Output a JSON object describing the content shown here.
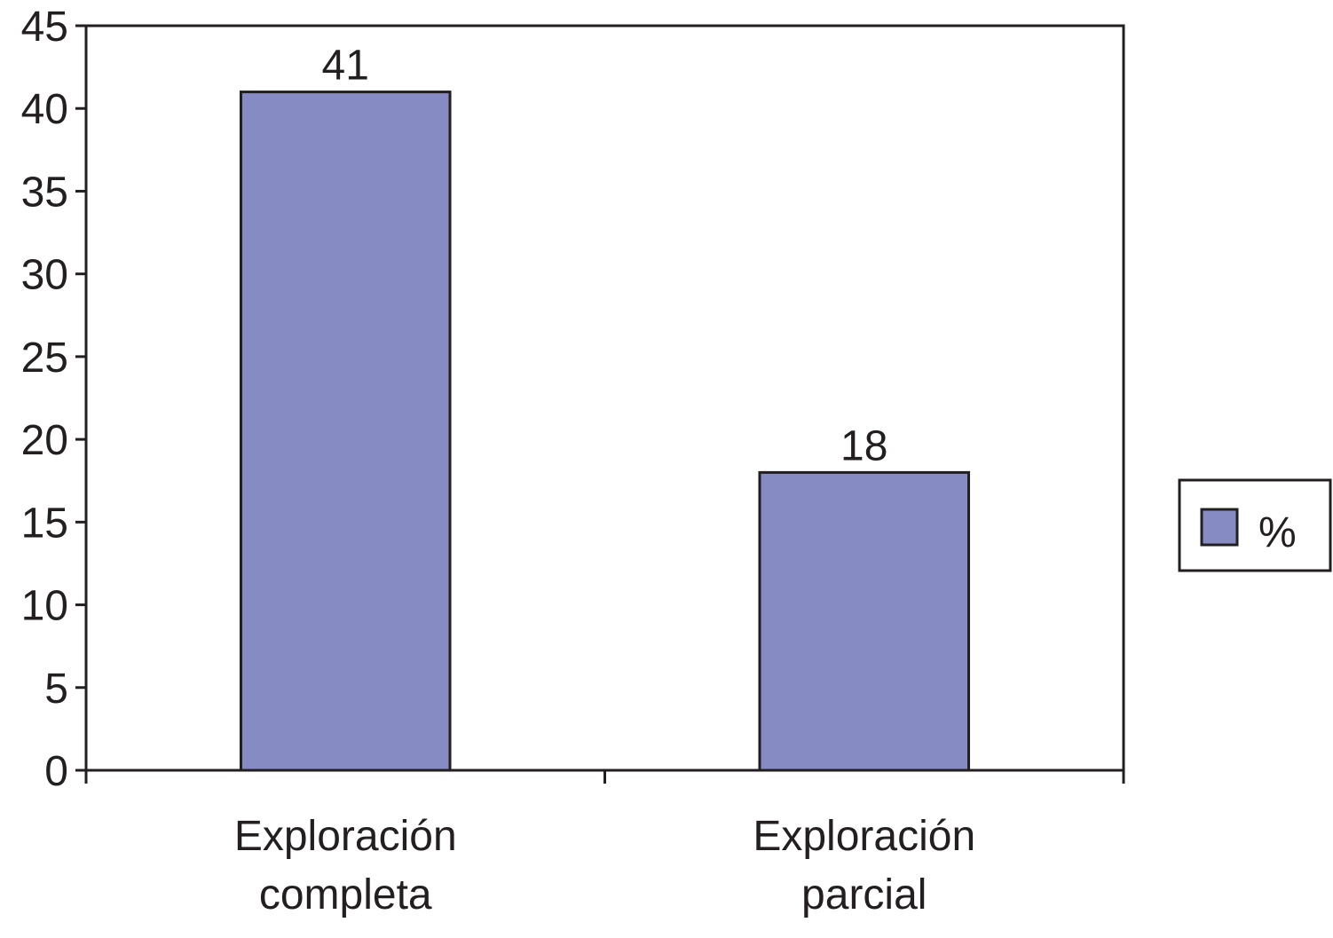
{
  "chart_data": {
    "type": "bar",
    "categories": [
      [
        "Exploración",
        "completa"
      ],
      [
        "Exploración",
        "parcial"
      ]
    ],
    "series": [
      {
        "name": "%",
        "values": [
          41,
          18
        ]
      }
    ],
    "data_labels": [
      "41",
      "18"
    ],
    "ylim": [
      0,
      45
    ],
    "yticks": [
      0,
      5,
      10,
      15,
      20,
      25,
      30,
      35,
      40,
      45
    ],
    "ytick_labels": [
      "0",
      "5",
      "10",
      "15",
      "20",
      "25",
      "30",
      "35",
      "40",
      "45"
    ],
    "grid": false,
    "legend": {
      "position": "right",
      "label": "%"
    },
    "colors": {
      "bar": "#868bc3",
      "stroke": "#231f20",
      "text": "#231f20",
      "background": "#ffffff"
    }
  }
}
